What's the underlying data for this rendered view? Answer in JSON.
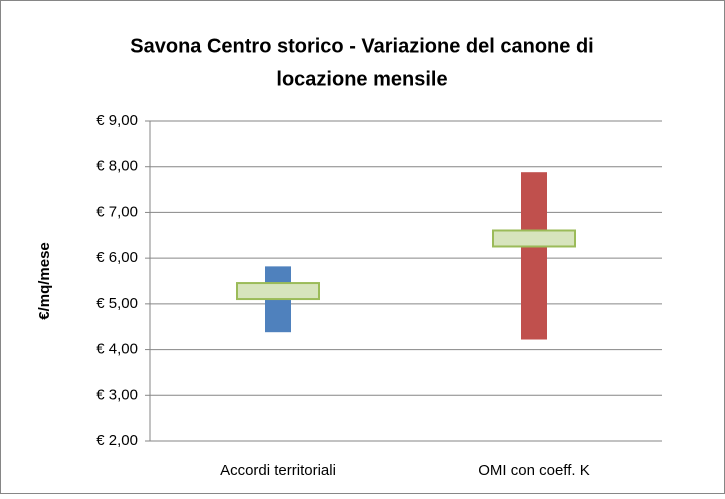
{
  "chart_data": {
    "type": "range",
    "title_lines": [
      "Savona Centro storico - Variazione del canone di",
      "locazione mensile"
    ],
    "ylabel": "€/mq/mese",
    "categories": [
      "Accordi territoriali",
      "OMI con coeff. K"
    ],
    "low": [
      4.38,
      4.22
    ],
    "high": [
      5.82,
      7.88
    ],
    "mid": [
      5.28,
      6.43
    ],
    "colors": [
      "#4f81bd",
      "#c0504d"
    ],
    "mid_color": "#d7e4bd",
    "mid_border": "#9bbb59",
    "ylim": [
      2,
      9
    ],
    "yticks": [
      {
        "value": 2,
        "label": "€ 2,00"
      },
      {
        "value": 3,
        "label": "€ 3,00"
      },
      {
        "value": 4,
        "label": "€ 4,00"
      },
      {
        "value": 5,
        "label": "€ 5,00"
      },
      {
        "value": 6,
        "label": "€ 6,00"
      },
      {
        "value": 7,
        "label": "€ 7,00"
      },
      {
        "value": 8,
        "label": "€ 8,00"
      },
      {
        "value": 9,
        "label": "€ 9,00"
      }
    ],
    "grid": true
  }
}
